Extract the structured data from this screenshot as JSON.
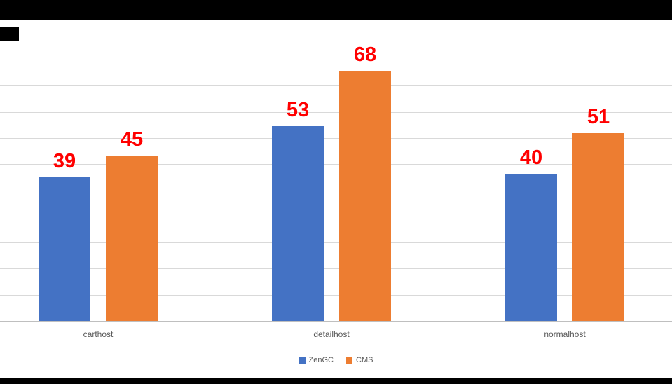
{
  "chart_data": {
    "type": "bar",
    "title": "",
    "xlabel": "",
    "ylabel": "",
    "categories": [
      "carthost",
      "detailhost",
      "normalhost"
    ],
    "series": [
      {
        "name": "ZenGC",
        "color": "#4472c4",
        "values": [
          39,
          53,
          40
        ]
      },
      {
        "name": "CMS",
        "color": "#ed7d31",
        "values": [
          45,
          68,
          51
        ]
      }
    ],
    "ylim": [
      0,
      71
    ],
    "gridline_intervals": 10,
    "grid": true,
    "legend_position": "bottom",
    "data_labels": true,
    "data_label_color": "#ff0000",
    "gridline_color": "#d9d9d9"
  }
}
